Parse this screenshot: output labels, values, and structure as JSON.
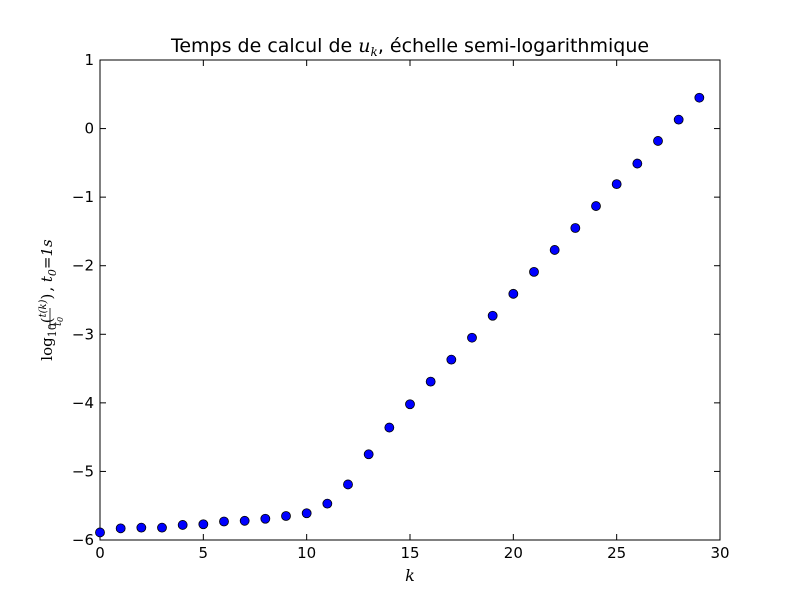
{
  "chart_data": {
    "type": "scatter",
    "title": {
      "prefix": "Temps de calcul de ",
      "math_main": "u",
      "math_sub": "k",
      "suffix": ", échelle semi-logarithmique"
    },
    "xlabel": "k",
    "ylabel": {
      "fn": "log",
      "fn_sub": "10",
      "frac_num": "t(k)",
      "frac_den_main": "t",
      "frac_den_sub": "0",
      "t0_main": "t",
      "t0_sub": "0",
      "t0_value": "=1s"
    },
    "xlim": [
      0,
      30
    ],
    "ylim": [
      -6,
      1
    ],
    "xticks": [
      0,
      5,
      10,
      15,
      20,
      25,
      30
    ],
    "xtick_labels": [
      "0",
      "5",
      "10",
      "15",
      "20",
      "25",
      "30"
    ],
    "yticks": [
      1,
      0,
      -1,
      -2,
      -3,
      -4,
      -5,
      -6
    ],
    "ytick_labels": [
      "1",
      "0",
      "−1",
      "−2",
      "−3",
      "−4",
      "−5",
      "−6"
    ],
    "grid": false,
    "marker_color": "#0000ff",
    "marker_edge_color": "#000000",
    "series": [
      {
        "x": [
          0,
          1,
          2,
          3,
          4,
          5,
          6,
          7,
          8,
          9,
          10,
          11,
          12,
          13,
          14,
          15,
          16,
          17,
          18,
          19,
          20,
          21,
          22,
          23,
          24,
          25,
          26,
          27,
          28,
          29
        ],
        "y": [
          -5.89,
          -5.83,
          -5.82,
          -5.82,
          -5.78,
          -5.77,
          -5.73,
          -5.72,
          -5.69,
          -5.65,
          -5.61,
          -5.47,
          -5.19,
          -4.75,
          -4.36,
          -4.02,
          -3.69,
          -3.37,
          -3.05,
          -2.73,
          -2.41,
          -2.09,
          -1.77,
          -1.45,
          -1.13,
          -0.81,
          -0.51,
          -0.18,
          0.13,
          0.45
        ]
      }
    ]
  }
}
